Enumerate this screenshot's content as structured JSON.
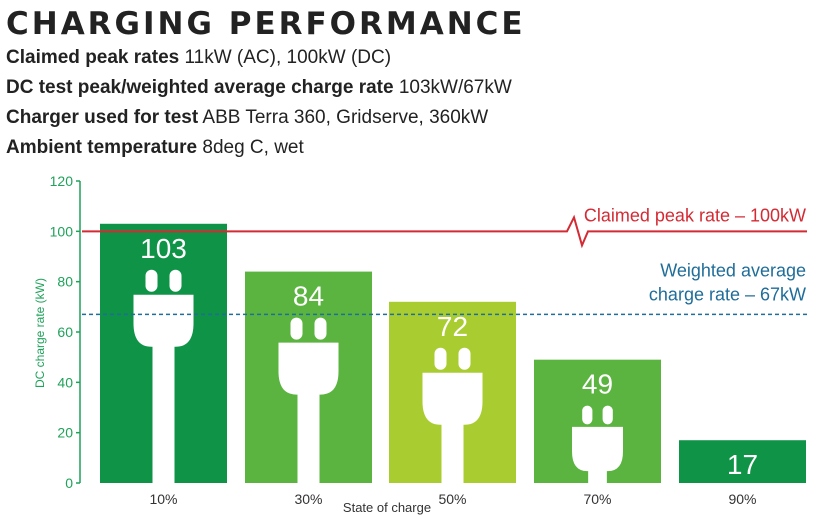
{
  "title": "CHARGING PERFORMANCE",
  "specs": [
    {
      "label": "Claimed peak rates",
      "value": "11kW (AC), 100kW (DC)"
    },
    {
      "label": "DC test peak/weighted average charge rate",
      "value": "103kW/67kW"
    },
    {
      "label": "Charger used for test",
      "value": "ABB Terra 360, Gridserve, 360kW"
    },
    {
      "label": "Ambient temperature",
      "value": "8deg C, wet"
    }
  ],
  "colors": {
    "bar_dark": "#0e9347",
    "bar_mid": "#5ab43f",
    "bar_light": "#a9cd31",
    "claimed_line": "#d42a34",
    "average_line": "#1f6d99",
    "axis": "#1fa25a"
  },
  "chart_data": {
    "type": "bar",
    "xlabel": "State of charge",
    "ylabel": "DC charge rate (kW)",
    "ylim": [
      0,
      120
    ],
    "yticks": [
      0,
      20,
      40,
      60,
      80,
      100,
      120
    ],
    "grid": false,
    "categories": [
      "10%",
      "30%",
      "50%",
      "70%",
      "90%"
    ],
    "values": [
      103,
      84,
      72,
      49,
      17
    ],
    "bar_colors": [
      "#0e9347",
      "#5ab43f",
      "#a9cd31",
      "#5ab43f",
      "#0e9347"
    ],
    "plug_icons": [
      true,
      true,
      true,
      true,
      false
    ],
    "reference_lines": [
      {
        "name": "claimed",
        "label": "Claimed peak rate – 100kW",
        "value": 100,
        "style": "solid",
        "color": "#d42a34"
      },
      {
        "name": "average",
        "label_lines": [
          "Weighted average",
          "charge rate – 67kW"
        ],
        "value": 67,
        "style": "dashed",
        "color": "#1f6d99"
      }
    ]
  }
}
